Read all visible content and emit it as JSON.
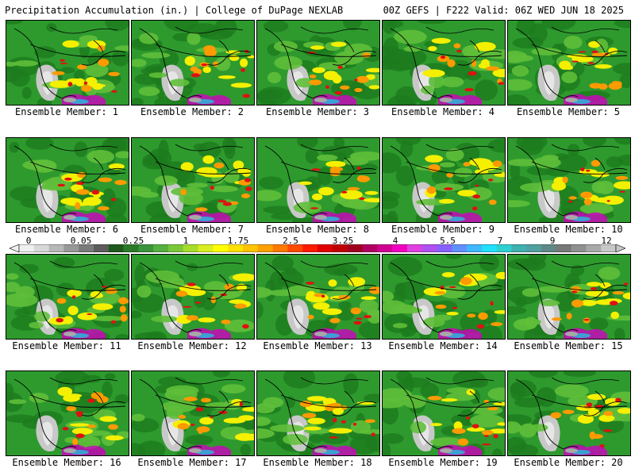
{
  "header": {
    "left": "Precipitation Accumulation (in.) | College of DuPage NEXLAB",
    "right": "00Z GEFS | F222 Valid: 06Z WED JUN 18 2025"
  },
  "panels": [
    {
      "label": "Ensemble Member: 1"
    },
    {
      "label": "Ensemble Member: 2"
    },
    {
      "label": "Ensemble Member: 3"
    },
    {
      "label": "Ensemble Member: 4"
    },
    {
      "label": "Ensemble Member: 5"
    },
    {
      "label": "Ensemble Member: 6"
    },
    {
      "label": "Ensemble Member: 7"
    },
    {
      "label": "Ensemble Member: 8"
    },
    {
      "label": "Ensemble Member: 9"
    },
    {
      "label": "Ensemble Member: 10"
    },
    {
      "label": "Ensemble Member: 11"
    },
    {
      "label": "Ensemble Member: 12"
    },
    {
      "label": "Ensemble Member: 13"
    },
    {
      "label": "Ensemble Member: 14"
    },
    {
      "label": "Ensemble Member: 15"
    },
    {
      "label": "Ensemble Member: 16"
    },
    {
      "label": "Ensemble Member: 17"
    },
    {
      "label": "Ensemble Member: 18"
    },
    {
      "label": "Ensemble Member: 19"
    },
    {
      "label": "Ensemble Member: 20"
    }
  ],
  "colorbar": {
    "ticks": [
      "0",
      "0.05",
      "0.25",
      "1",
      "1.75",
      "2.5",
      "3.25",
      "4",
      "5.5",
      "7",
      "9",
      "12"
    ],
    "colors": [
      "#f0f0f0",
      "#d8d8d8",
      "#b8b8b8",
      "#989898",
      "#7a7a7a",
      "#5c5c5c",
      "#1e5a1e",
      "#2a7a2a",
      "#3a943a",
      "#55b040",
      "#7ac83a",
      "#a8dc2a",
      "#d8ee22",
      "#ffff00",
      "#ffe000",
      "#ffc400",
      "#ffa000",
      "#ff7a00",
      "#ff4a00",
      "#ff1a00",
      "#e00000",
      "#c00000",
      "#a00020",
      "#b00060",
      "#d00090",
      "#f000c0",
      "#e040e0",
      "#b050f0",
      "#8860ff",
      "#6090ff",
      "#40b8ff",
      "#20e0ff",
      "#30d0d0",
      "#40b0b0",
      "#50a0a0",
      "#608888",
      "#787878",
      "#909090",
      "#a8a8a8",
      "#c8c8c8"
    ]
  },
  "palette": {
    "green_dark": "#1d7a1d",
    "green": "#2e9a2e",
    "green_light": "#5fbf3a",
    "yellow": "#f4f000",
    "orange": "#ff9a00",
    "red": "#e01010",
    "magenta": "#d000c0",
    "gray": "#a8a8a8",
    "cyan": "#20c0e0"
  }
}
